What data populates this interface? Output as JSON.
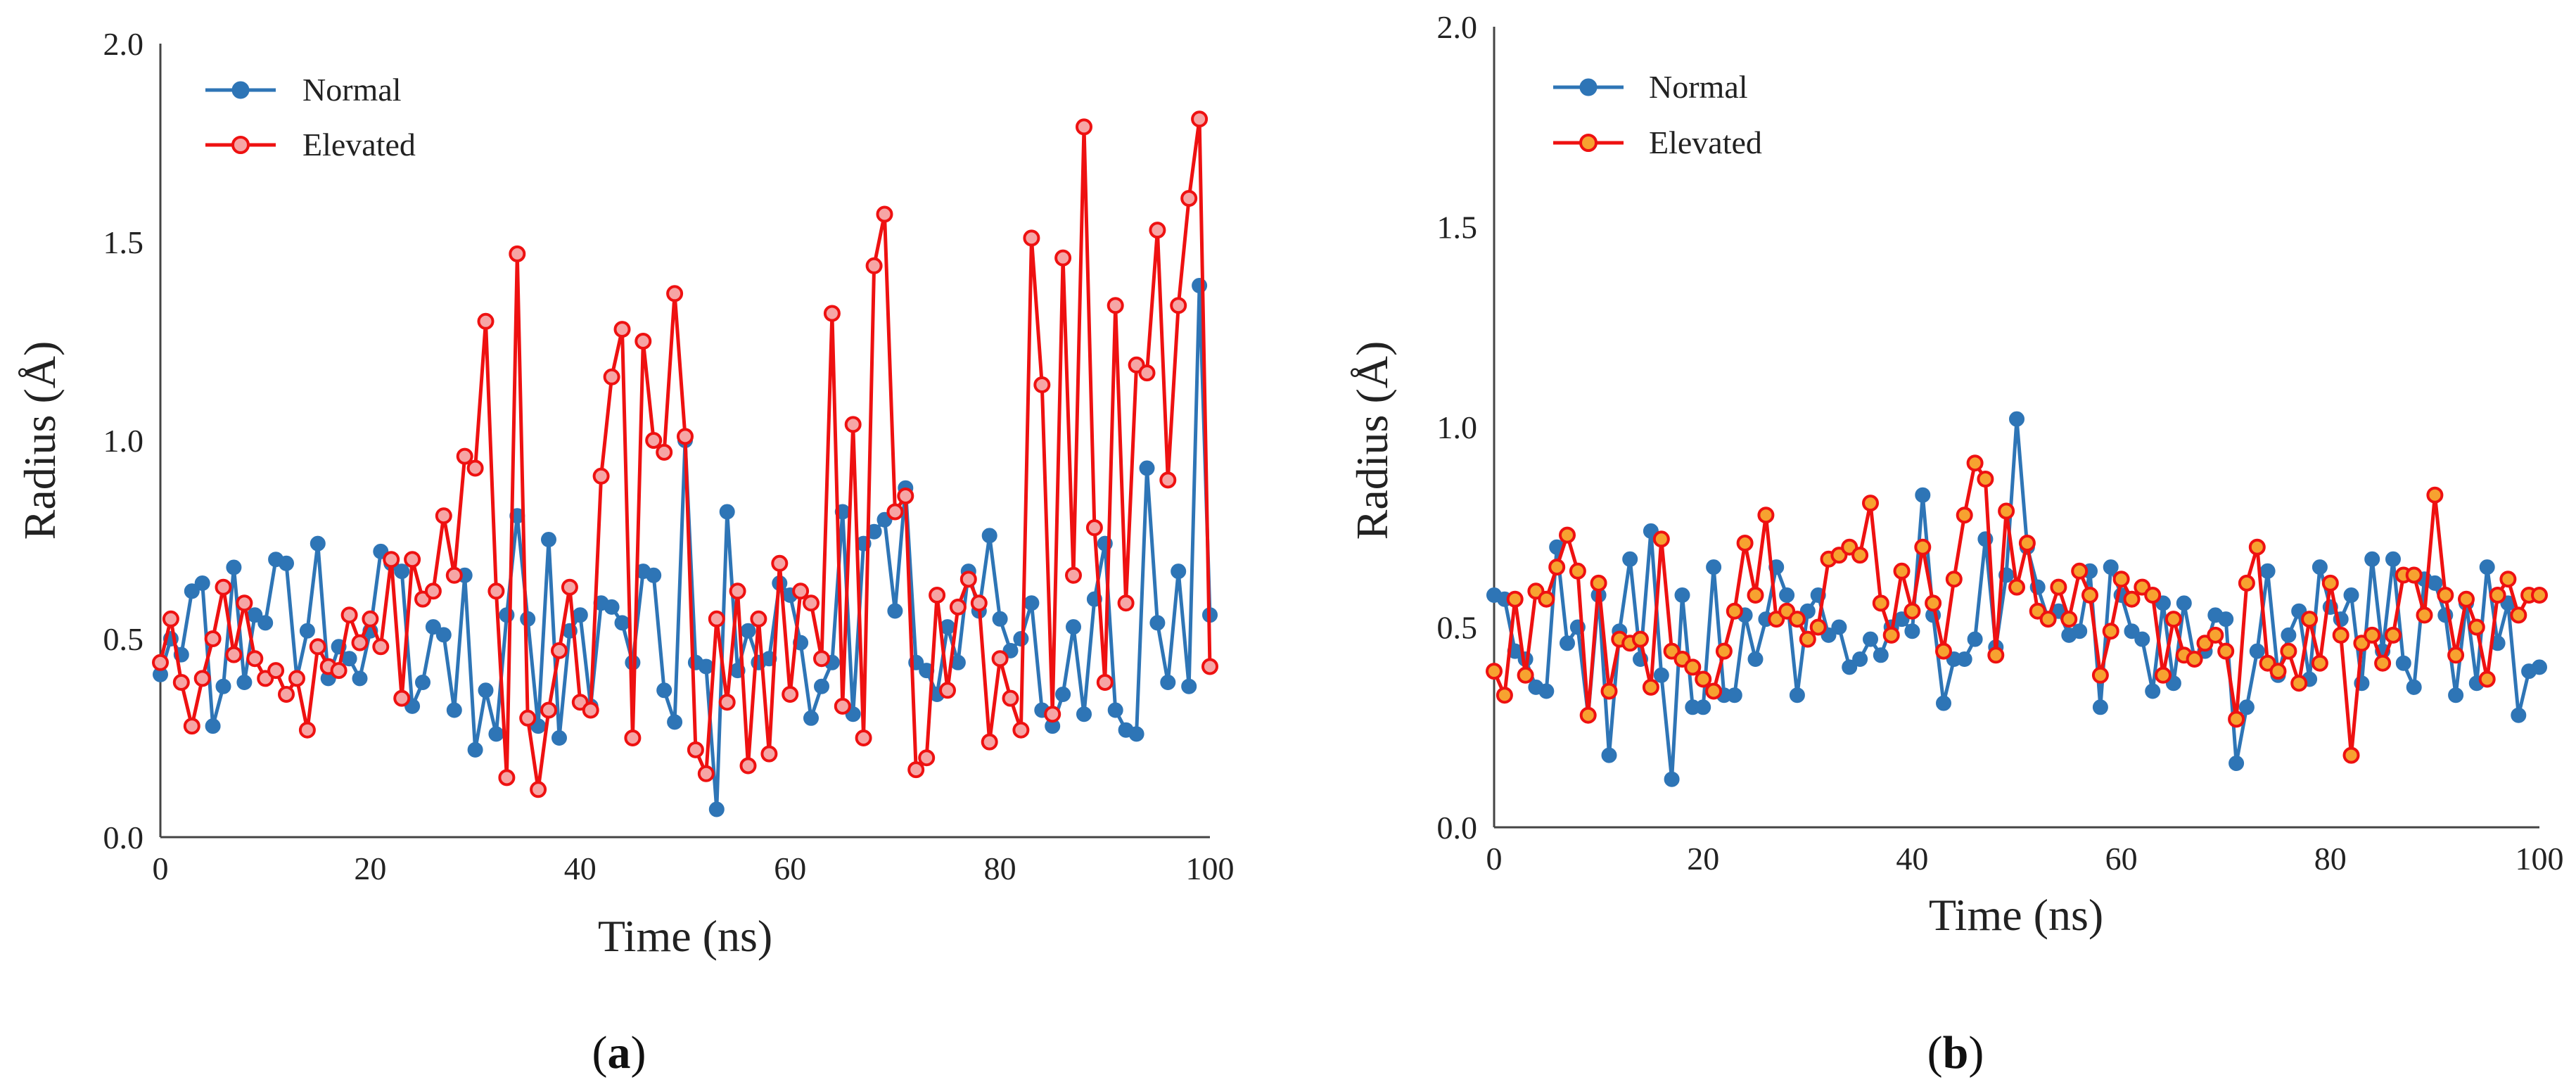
{
  "chart_data": [
    {
      "type": "line",
      "panel_label": {
        "open": "(",
        "letter": "a",
        "close": ")"
      },
      "xlabel": "Time (ns)",
      "ylabel": "Radius (Å)",
      "xlim": [
        0,
        100
      ],
      "ylim": [
        0,
        2.0
      ],
      "xticks": [
        "0",
        "20",
        "40",
        "60",
        "80",
        "100"
      ],
      "yticks": [
        "0.0",
        "0.5",
        "1.0",
        "1.5",
        "2.0"
      ],
      "legend_position": "top-left",
      "colors": {
        "Normal": "#2e75b6",
        "Elevated": "#ee1111",
        "elevated_fill": "#f6a5a5",
        "normal_fill": "#2e75b6"
      },
      "series": [
        {
          "name": "Normal",
          "x": [
            0,
            1,
            2,
            3,
            4,
            5,
            6,
            7,
            8,
            9,
            10,
            11,
            12,
            13,
            14,
            15,
            16,
            17,
            18,
            19,
            20,
            21,
            22,
            23,
            24,
            25,
            26,
            27,
            28,
            29,
            30,
            31,
            32,
            33,
            34,
            35,
            36,
            37,
            38,
            39,
            40,
            41,
            42,
            43,
            44,
            45,
            46,
            47,
            48,
            49,
            50,
            51,
            52,
            53,
            54,
            55,
            56,
            57,
            58,
            59,
            60,
            61,
            62,
            63,
            64,
            65,
            66,
            67,
            68,
            69,
            70,
            71,
            72,
            73,
            74,
            75,
            76,
            77,
            78,
            79,
            80,
            81,
            82,
            83,
            84,
            85,
            86,
            87,
            88,
            89,
            90,
            91,
            92,
            93,
            94,
            95,
            96,
            97,
            98,
            99,
            100
          ],
          "values": [
            0.41,
            0.5,
            0.46,
            0.62,
            0.64,
            0.28,
            0.38,
            0.68,
            0.39,
            0.56,
            0.54,
            0.7,
            0.69,
            0.4,
            0.52,
            0.74,
            0.4,
            0.48,
            0.45,
            0.4,
            0.52,
            0.72,
            0.69,
            0.67,
            0.33,
            0.39,
            0.53,
            0.51,
            0.32,
            0.66,
            0.22,
            0.37,
            0.26,
            0.56,
            0.81,
            0.55,
            0.28,
            0.75,
            0.25,
            0.52,
            0.56,
            0.33,
            0.59,
            0.58,
            0.54,
            0.44,
            0.67,
            0.66,
            0.37,
            0.29,
            1.0,
            0.44,
            0.43,
            0.07,
            0.82,
            0.42,
            0.52,
            0.44,
            0.45,
            0.64,
            0.61,
            0.49,
            0.3,
            0.38,
            0.44,
            0.82,
            0.31,
            0.74,
            0.77,
            0.8,
            0.57,
            0.88,
            0.44,
            0.42,
            0.36,
            0.53,
            0.44,
            0.67,
            0.57,
            0.76,
            0.55,
            0.47,
            0.5,
            0.59,
            0.32,
            0.28,
            0.36,
            0.53,
            0.31,
            0.6,
            0.74,
            0.32,
            0.27,
            0.26,
            0.93,
            0.54,
            0.39,
            0.67,
            0.38,
            1.39,
            0.56
          ]
        },
        {
          "name": "Elevated",
          "x": [
            0,
            1,
            2,
            3,
            4,
            5,
            6,
            7,
            8,
            9,
            10,
            11,
            12,
            13,
            14,
            15,
            16,
            17,
            18,
            19,
            20,
            21,
            22,
            23,
            24,
            25,
            26,
            27,
            28,
            29,
            30,
            31,
            32,
            33,
            34,
            35,
            36,
            37,
            38,
            39,
            40,
            41,
            42,
            43,
            44,
            45,
            46,
            47,
            48,
            49,
            50,
            51,
            52,
            53,
            54,
            55,
            56,
            57,
            58,
            59,
            60,
            61,
            62,
            63,
            64,
            65,
            66,
            67,
            68,
            69,
            70,
            71,
            72,
            73,
            74,
            75,
            76,
            77,
            78,
            79,
            80,
            81,
            82,
            83,
            84,
            85,
            86,
            87,
            88,
            89,
            90,
            91,
            92,
            93,
            94,
            95,
            96,
            97,
            98,
            99,
            100
          ],
          "values": [
            0.44,
            0.55,
            0.39,
            0.28,
            0.4,
            0.5,
            0.63,
            0.46,
            0.59,
            0.45,
            0.4,
            0.42,
            0.36,
            0.4,
            0.27,
            0.48,
            0.43,
            0.42,
            0.56,
            0.49,
            0.55,
            0.48,
            0.7,
            0.35,
            0.7,
            0.6,
            0.62,
            0.81,
            0.66,
            0.96,
            0.93,
            1.3,
            0.62,
            0.15,
            1.47,
            0.3,
            0.12,
            0.32,
            0.47,
            0.63,
            0.34,
            0.32,
            0.91,
            1.16,
            1.28,
            0.25,
            1.25,
            1.0,
            0.97,
            1.37,
            1.01,
            0.22,
            0.16,
            0.55,
            0.34,
            0.62,
            0.18,
            0.55,
            0.21,
            0.69,
            0.36,
            0.62,
            0.59,
            0.45,
            1.32,
            0.33,
            1.04,
            0.25,
            1.44,
            1.57,
            0.82,
            0.86,
            0.17,
            0.2,
            0.61,
            0.37,
            0.58,
            0.65,
            0.59,
            0.24,
            0.45,
            0.35,
            0.27,
            1.51,
            1.14,
            0.31,
            1.46,
            0.66,
            1.79,
            0.78,
            0.39,
            1.34,
            0.59,
            1.19,
            1.17,
            1.53,
            0.9,
            1.34,
            1.61,
            1.81,
            0.43
          ]
        }
      ]
    },
    {
      "type": "line",
      "panel_label": {
        "open": "(",
        "letter": "b",
        "close": ")"
      },
      "xlabel": "Time (ns)",
      "ylabel": "Radius (Å)",
      "xlim": [
        0,
        100
      ],
      "ylim": [
        0,
        2.0
      ],
      "xticks": [
        "0",
        "20",
        "40",
        "60",
        "80",
        "100"
      ],
      "yticks": [
        "0.0",
        "0.5",
        "1.0",
        "1.5",
        "2.0"
      ],
      "legend_position": "top-left",
      "colors": {
        "Normal": "#2e75b6",
        "Elevated": "#ee1111",
        "elevated_fill": "#f7a230",
        "normal_fill": "#2e75b6"
      },
      "series": [
        {
          "name": "Normal",
          "x": [
            0,
            1,
            2,
            3,
            4,
            5,
            6,
            7,
            8,
            9,
            10,
            11,
            12,
            13,
            14,
            15,
            16,
            17,
            18,
            19,
            20,
            21,
            22,
            23,
            24,
            25,
            26,
            27,
            28,
            29,
            30,
            31,
            32,
            33,
            34,
            35,
            36,
            37,
            38,
            39,
            40,
            41,
            42,
            43,
            44,
            45,
            46,
            47,
            48,
            49,
            50,
            51,
            52,
            53,
            54,
            55,
            56,
            57,
            58,
            59,
            60,
            61,
            62,
            63,
            64,
            65,
            66,
            67,
            68,
            69,
            70,
            71,
            72,
            73,
            74,
            75,
            76,
            77,
            78,
            79,
            80,
            81,
            82,
            83,
            84,
            85,
            86,
            87,
            88,
            89,
            90,
            91,
            92,
            93,
            94,
            95,
            96,
            97,
            98,
            99,
            100
          ],
          "values": [
            0.58,
            0.57,
            0.44,
            0.42,
            0.35,
            0.34,
            0.7,
            0.46,
            0.5,
            0.28,
            0.58,
            0.18,
            0.49,
            0.67,
            0.42,
            0.74,
            0.38,
            0.12,
            0.58,
            0.3,
            0.3,
            0.65,
            0.33,
            0.33,
            0.53,
            0.42,
            0.52,
            0.65,
            0.58,
            0.33,
            0.54,
            0.58,
            0.48,
            0.5,
            0.4,
            0.42,
            0.47,
            0.43,
            0.5,
            0.52,
            0.49,
            0.83,
            0.53,
            0.31,
            0.42,
            0.42,
            0.47,
            0.72,
            0.45,
            0.63,
            1.02,
            0.7,
            0.6,
            0.52,
            0.54,
            0.48,
            0.49,
            0.64,
            0.3,
            0.65,
            0.58,
            0.49,
            0.47,
            0.34,
            0.56,
            0.36,
            0.56,
            0.42,
            0.44,
            0.53,
            0.52,
            0.16,
            0.3,
            0.44,
            0.64,
            0.38,
            0.48,
            0.54,
            0.37,
            0.65,
            0.55,
            0.52,
            0.58,
            0.36,
            0.67,
            0.44,
            0.67,
            0.41,
            0.35,
            0.62,
            0.61,
            0.53,
            0.33,
            0.56,
            0.36,
            0.65,
            0.46,
            0.56,
            0.28,
            0.39,
            0.4
          ]
        },
        {
          "name": "Elevated",
          "x": [
            0,
            1,
            2,
            3,
            4,
            5,
            6,
            7,
            8,
            9,
            10,
            11,
            12,
            13,
            14,
            15,
            16,
            17,
            18,
            19,
            20,
            21,
            22,
            23,
            24,
            25,
            26,
            27,
            28,
            29,
            30,
            31,
            32,
            33,
            34,
            35,
            36,
            37,
            38,
            39,
            40,
            41,
            42,
            43,
            44,
            45,
            46,
            47,
            48,
            49,
            50,
            51,
            52,
            53,
            54,
            55,
            56,
            57,
            58,
            59,
            60,
            61,
            62,
            63,
            64,
            65,
            66,
            67,
            68,
            69,
            70,
            71,
            72,
            73,
            74,
            75,
            76,
            77,
            78,
            79,
            80,
            81,
            82,
            83,
            84,
            85,
            86,
            87,
            88,
            89,
            90,
            91,
            92,
            93,
            94,
            95,
            96,
            97,
            98,
            99,
            100
          ],
          "values": [
            0.39,
            0.33,
            0.57,
            0.38,
            0.59,
            0.57,
            0.65,
            0.73,
            0.64,
            0.28,
            0.61,
            0.34,
            0.47,
            0.46,
            0.47,
            0.35,
            0.72,
            0.44,
            0.42,
            0.4,
            0.37,
            0.34,
            0.44,
            0.54,
            0.71,
            0.58,
            0.78,
            0.52,
            0.54,
            0.52,
            0.47,
            0.5,
            0.67,
            0.68,
            0.7,
            0.68,
            0.81,
            0.56,
            0.48,
            0.64,
            0.54,
            0.7,
            0.56,
            0.44,
            0.62,
            0.78,
            0.91,
            0.87,
            0.43,
            0.79,
            0.6,
            0.71,
            0.54,
            0.52,
            0.6,
            0.52,
            0.64,
            0.58,
            0.38,
            0.49,
            0.62,
            0.57,
            0.6,
            0.58,
            0.38,
            0.52,
            0.43,
            0.42,
            0.46,
            0.48,
            0.44,
            0.27,
            0.61,
            0.7,
            0.41,
            0.39,
            0.44,
            0.36,
            0.52,
            0.41,
            0.61,
            0.48,
            0.18,
            0.46,
            0.48,
            0.41,
            0.48,
            0.63,
            0.63,
            0.53,
            0.83,
            0.58,
            0.43,
            0.57,
            0.5,
            0.37,
            0.58,
            0.62,
            0.53,
            0.58,
            0.58
          ]
        }
      ]
    }
  ]
}
